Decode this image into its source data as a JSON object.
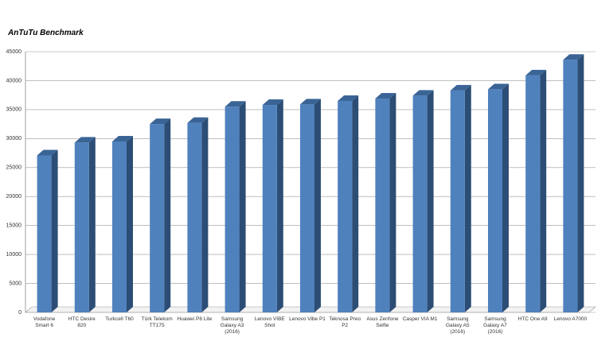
{
  "chart_data": {
    "type": "bar",
    "title": "AnTuTu Benchmark",
    "categories": [
      "Vodafone Smart 6",
      "HTC Desire 820",
      "Turkcell T60",
      "Türk Telekom TT175",
      "Huawei P8 Lite",
      "Samsung Galaxy A3 (2016)",
      "Lenovo VIBE Shot",
      "Lenovo Vibe P1",
      "Teknosa Preo P2",
      "Asus Zenfone Selfie",
      "Casper VIA M1",
      "Samsung Galaxy A5 (2016)",
      "Samsung Galaxy A7 (2016)",
      "HTC One A9",
      "Lenovo A7000"
    ],
    "values": [
      27100,
      29300,
      29500,
      32500,
      32700,
      35500,
      35800,
      35900,
      36500,
      36900,
      37400,
      38300,
      38500,
      40900,
      43600
    ],
    "color": "#4f81bd",
    "ylim": [
      0,
      45000
    ],
    "yticks": [
      0,
      5000,
      10000,
      15000,
      20000,
      25000,
      30000,
      35000,
      40000,
      45000
    ],
    "grid": true
  }
}
